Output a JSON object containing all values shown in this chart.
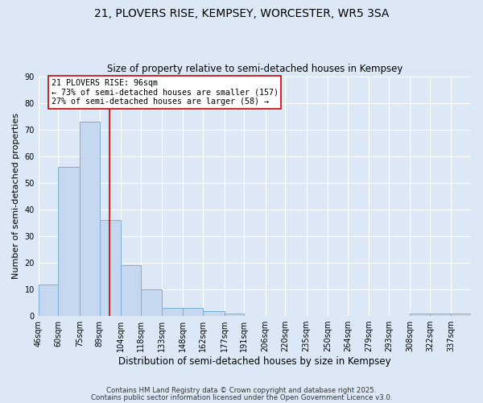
{
  "title_line1": "21, PLOVERS RISE, KEMPSEY, WORCESTER, WR5 3SA",
  "title_line2": "Size of property relative to semi-detached houses in Kempsey",
  "xlabel": "Distribution of semi-detached houses by size in Kempsey",
  "ylabel": "Number of semi-detached properties",
  "bin_labels": [
    "46sqm",
    "60sqm",
    "75sqm",
    "89sqm",
    "104sqm",
    "118sqm",
    "133sqm",
    "148sqm",
    "162sqm",
    "177sqm",
    "191sqm",
    "206sqm",
    "220sqm",
    "235sqm",
    "250sqm",
    "264sqm",
    "279sqm",
    "293sqm",
    "308sqm",
    "322sqm",
    "337sqm"
  ],
  "bin_edges": [
    46,
    60,
    75,
    89,
    104,
    118,
    133,
    148,
    162,
    177,
    191,
    206,
    220,
    235,
    250,
    264,
    279,
    293,
    308,
    322,
    337,
    351
  ],
  "counts": [
    12,
    56,
    73,
    36,
    19,
    10,
    3,
    3,
    2,
    1,
    0,
    0,
    0,
    0,
    0,
    0,
    0,
    0,
    1,
    1,
    1
  ],
  "bar_color": "#c5d8f0",
  "bar_edge_color": "#7aafd4",
  "property_size": 96,
  "red_line_color": "#cc0000",
  "annotation_title": "21 PLOVERS RISE: 96sqm",
  "annotation_line1": "← 73% of semi-detached houses are smaller (157)",
  "annotation_line2": "27% of semi-detached houses are larger (58) →",
  "annotation_box_color": "#ffffff",
  "annotation_box_edge": "#cc0000",
  "background_color": "#dce8f5",
  "ylim": [
    0,
    90
  ],
  "yticks": [
    0,
    10,
    20,
    30,
    40,
    50,
    60,
    70,
    80,
    90
  ],
  "footer_line1": "Contains HM Land Registry data © Crown copyright and database right 2025.",
  "footer_line2": "Contains public sector information licensed under the Open Government Licence v3.0."
}
